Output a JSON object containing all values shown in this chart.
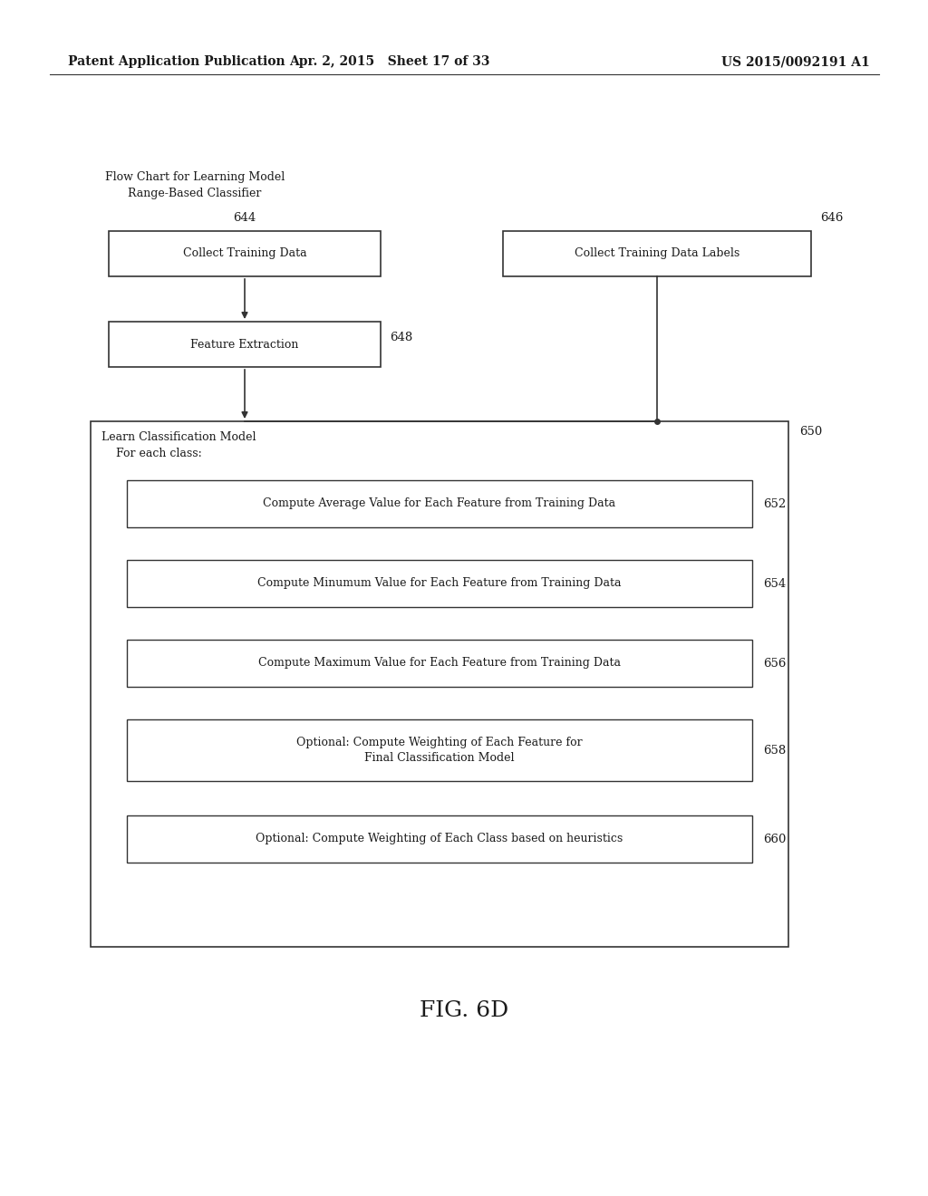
{
  "bg_color": "#ffffff",
  "text_color": "#000000",
  "header_left": "Patent Application Publication",
  "header_center": "Apr. 2, 2015   Sheet 17 of 33",
  "header_right": "US 2015/0092191 A1",
  "caption_line1": "Flow Chart for Learning Model",
  "caption_line2": "Range-Based Classifier",
  "fig_label": "FIG. 6D",
  "label_644": "644",
  "label_646": "646",
  "label_648": "648",
  "label_650": "650",
  "label_652": "652",
  "label_654": "654",
  "label_656": "656",
  "label_658": "658",
  "label_660": "660",
  "text_collect_train": "Collect Training Data",
  "text_collect_labels": "Collect Training Data Labels",
  "text_feature_extract": "Feature Extraction",
  "text_outer_line1": "Learn Classification Model",
  "text_outer_line2": "    For each class:",
  "text_avg": "Compute Average Value for Each Feature from Training Data",
  "text_min": "Compute Minumum Value for Each Feature from Training Data",
  "text_max": "Compute Maximum Value for Each Feature from Training Data",
  "text_opt1_line1": "Optional: Compute Weighting of Each Feature for",
  "text_opt1_line2": "Final Classification Model",
  "text_opt2": "Optional: Compute Weighting of Each Class based on heuristics",
  "font_size_header": 10,
  "font_size_box": 9,
  "font_size_ref": 9.5,
  "font_size_caption": 9,
  "font_size_fig": 18
}
